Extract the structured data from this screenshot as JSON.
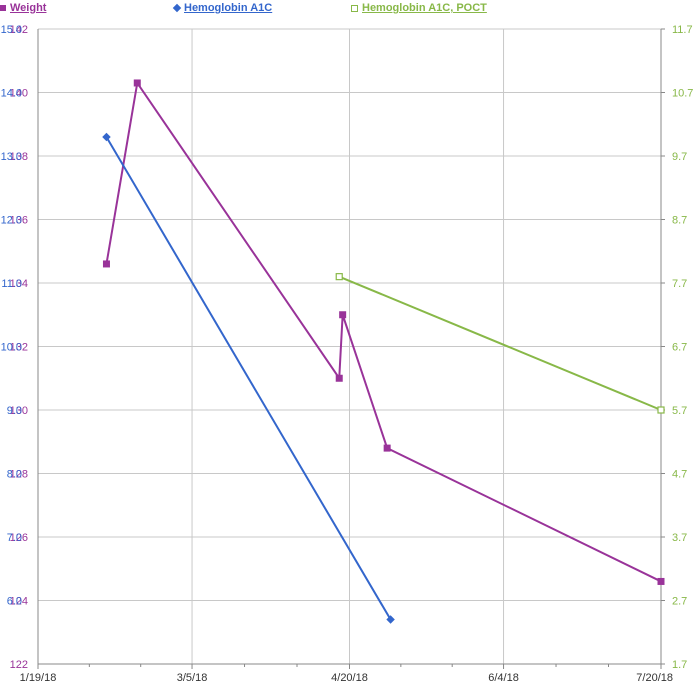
{
  "legend": {
    "weight": "Weight",
    "a1c": "Hemoglobin A1C",
    "poct": "Hemoglobin A1C, POCT"
  },
  "colors": {
    "weight": "#993399",
    "a1c": "#3366cc",
    "poct": "#88b848",
    "grid": "#c8c8c8",
    "axis": "#888888"
  },
  "chart_data": {
    "type": "line",
    "grid": true,
    "legend_position": "top",
    "x_axis": {
      "range": [
        "1/19/18",
        "7/20/18"
      ],
      "tick_labels": [
        "1/19/18",
        "3/5/18",
        "4/20/18",
        "6/4/18",
        "7/20/18"
      ]
    },
    "y_axis_weight": {
      "range": [
        122,
        142
      ],
      "tick_labels": [
        "142",
        "140",
        "138",
        "136",
        "134",
        "132",
        "130",
        "128",
        "126",
        "124",
        "122"
      ]
    },
    "y_axis_a1c": {
      "range": [
        5.0,
        15.0
      ],
      "tick_labels": [
        "15.0",
        "14.0",
        "13.0",
        "12.0",
        "11.0",
        "10.0",
        "9.0",
        "8.0",
        "7.0",
        "6.0"
      ]
    },
    "y_axis_poct": {
      "range": [
        1.7,
        11.7
      ],
      "tick_labels": [
        "11.7",
        "10.7",
        "9.7",
        "8.7",
        "7.7",
        "6.7",
        "5.7",
        "4.7",
        "3.7",
        "2.7",
        "1.7"
      ]
    },
    "series": [
      {
        "name": "Weight",
        "axis": "weight",
        "marker": "square",
        "points": [
          {
            "x": "2/8/18",
            "y": 134.6
          },
          {
            "x": "2/17/18",
            "y": 140.3
          },
          {
            "x": "4/17/18",
            "y": 131.0
          },
          {
            "x": "4/18/18",
            "y": 133.0
          },
          {
            "x": "5/1/18",
            "y": 128.8
          },
          {
            "x": "7/20/18",
            "y": 124.6
          }
        ]
      },
      {
        "name": "Hemoglobin A1C",
        "axis": "a1c",
        "marker": "diamond",
        "points": [
          {
            "x": "2/8/18",
            "y": 13.3
          },
          {
            "x": "5/2/18",
            "y": 5.7
          }
        ]
      },
      {
        "name": "Hemoglobin A1C, POCT",
        "axis": "poct",
        "marker": "square-open",
        "points": [
          {
            "x": "4/17/18",
            "y": 7.8
          },
          {
            "x": "7/20/18",
            "y": 5.7
          }
        ]
      }
    ]
  }
}
